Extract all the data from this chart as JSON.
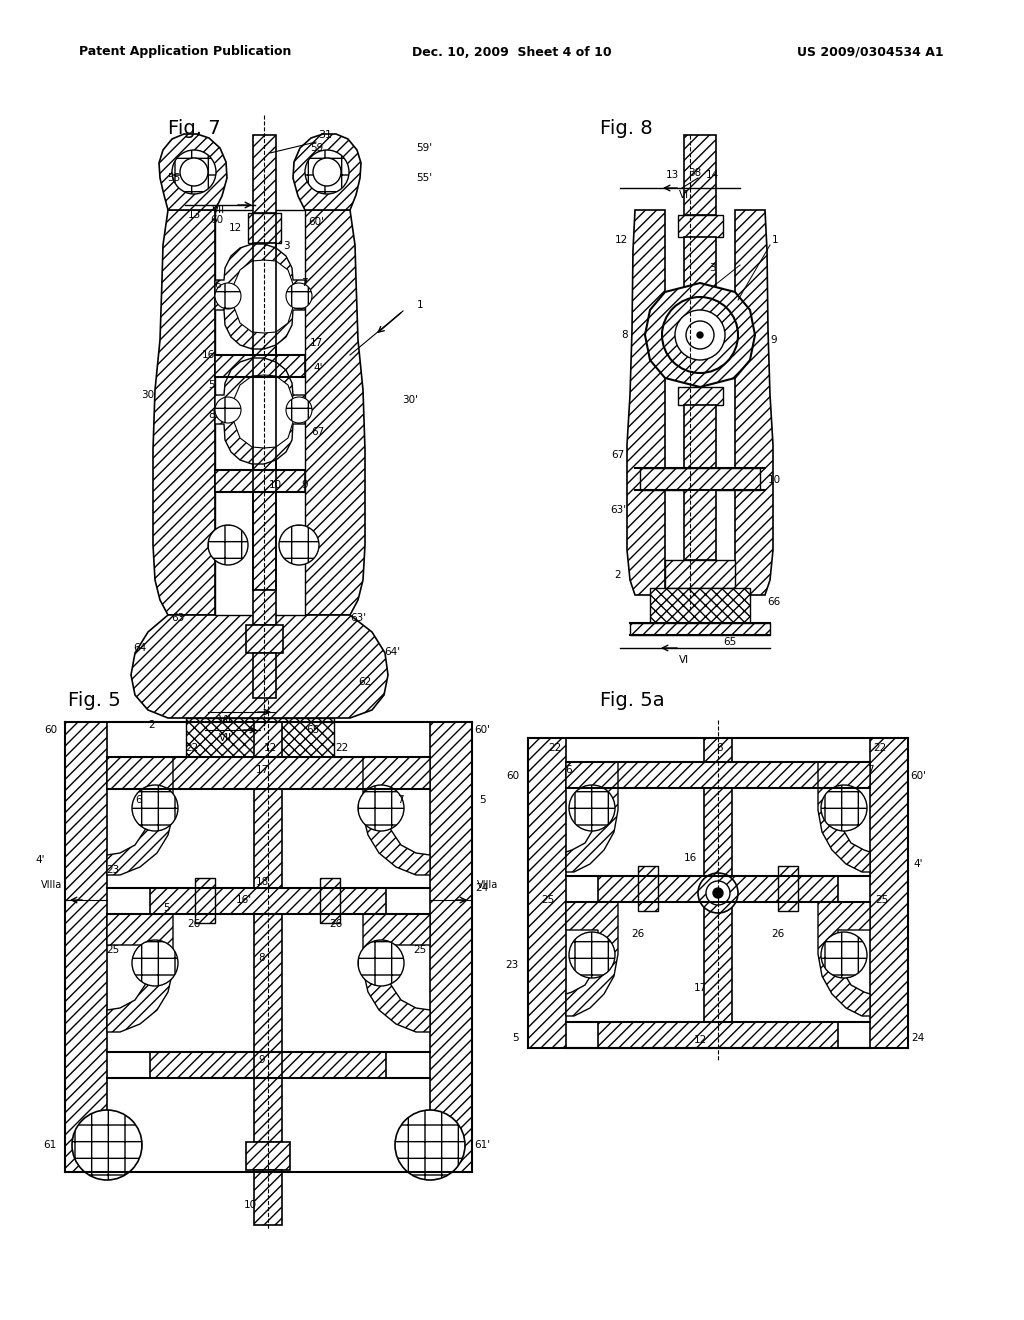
{
  "background_color": "#ffffff",
  "header_left": "Patent Application Publication",
  "header_center": "Dec. 10, 2009  Sheet 4 of 10",
  "header_right": "US 2009/0304534 A1",
  "fig7_title": "Fig. 7",
  "fig8_title": "Fig. 8",
  "fig5_title": "Fig. 5",
  "fig5a_title": "Fig. 5a",
  "text_color": "#000000"
}
